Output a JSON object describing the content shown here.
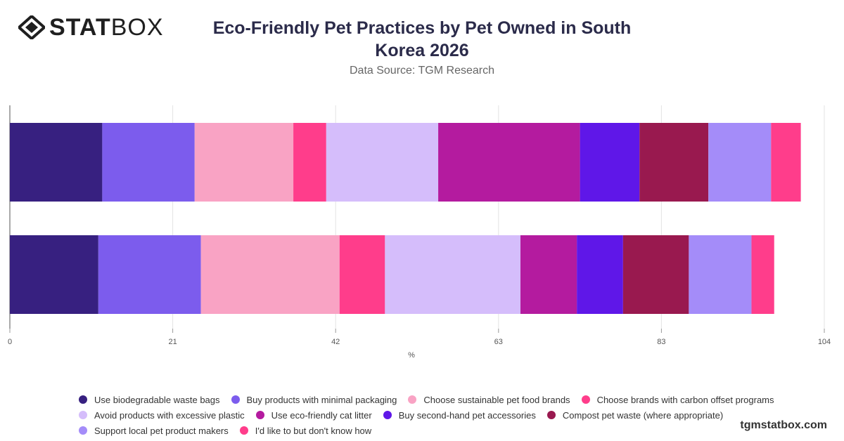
{
  "brand": {
    "logo_bold": "STAT",
    "logo_light": "BOX",
    "site": "tgmstatbox.com"
  },
  "chart_data": {
    "type": "bar",
    "orientation": "horizontal",
    "stacked": true,
    "title": "Eco-Friendly Pet Practices by Pet Owned in South Korea 2026",
    "subtitle": "Data Source: TGM Research",
    "xlabel": "%",
    "xlim": [
      0,
      104
    ],
    "x_ticks": [
      "0",
      "21",
      "42",
      "63",
      "83",
      "104"
    ],
    "categories": [
      "",
      ""
    ],
    "grid": "vertical",
    "legend_position": "bottom",
    "series": [
      {
        "name": "Use biodegradable waste bags",
        "color": "#372080",
        "values": [
          11.8,
          11.3
        ]
      },
      {
        "name": "Buy products with minimal packaging",
        "color": "#7c5ced",
        "values": [
          11.8,
          13.1
        ]
      },
      {
        "name": "Choose sustainable pet food brands",
        "color": "#f9a3c4",
        "values": [
          12.6,
          17.7
        ]
      },
      {
        "name": "Choose brands with carbon offset programs",
        "color": "#ff3d8b",
        "values": [
          4.2,
          5.8
        ]
      },
      {
        "name": "Avoid products with excessive plastic",
        "color": "#d5bdfb",
        "values": [
          14.3,
          17.3
        ]
      },
      {
        "name": "Use eco-friendly cat litter",
        "color": "#b41b9f",
        "values": [
          18.1,
          7.2
        ]
      },
      {
        "name": "Buy second-hand pet accessories",
        "color": "#5f17e8",
        "values": [
          7.6,
          5.9
        ]
      },
      {
        "name": "Compost pet waste (where appropriate)",
        "color": "#99194f",
        "values": [
          8.8,
          8.4
        ]
      },
      {
        "name": "Support local pet product makers",
        "color": "#a48cf9",
        "values": [
          8.0,
          8.0
        ]
      },
      {
        "name": "I'd like to but don't know how",
        "color": "#ff3d8b",
        "values": [
          3.8,
          2.9
        ]
      }
    ]
  }
}
